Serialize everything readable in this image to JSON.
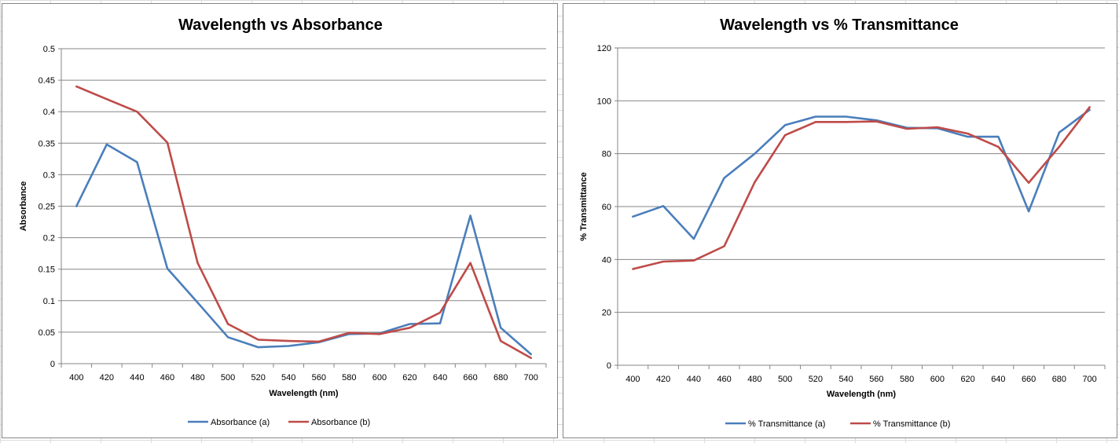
{
  "chart_data": [
    {
      "type": "line",
      "title": "Wavelength vs Absorbance",
      "xlabel": "Wavelength (nm)",
      "ylabel": "Absorbance",
      "categories": [
        "400",
        "420",
        "440",
        "460",
        "480",
        "500",
        "520",
        "540",
        "560",
        "580",
        "600",
        "620",
        "640",
        "660",
        "680",
        "700"
      ],
      "ylim": [
        0,
        0.5
      ],
      "yticks": [
        "0",
        "0.05",
        "0.1",
        "0.15",
        "0.2",
        "0.25",
        "0.3",
        "0.35",
        "0.4",
        "0.45",
        "0.5"
      ],
      "grid": true,
      "legend_position": "bottom",
      "series": [
        {
          "name": "Absorbance (a)",
          "color": "#4a7ebb",
          "values": [
            0.25,
            0.348,
            0.32,
            0.151,
            0.097,
            0.042,
            0.026,
            0.028,
            0.034,
            0.047,
            0.048,
            0.063,
            0.064,
            0.235,
            0.057,
            0.015
          ]
        },
        {
          "name": "Absorbance (b)",
          "color": "#be4b48",
          "values": [
            0.44,
            0.42,
            0.4,
            0.351,
            0.16,
            0.063,
            0.038,
            0.036,
            0.035,
            0.049,
            0.047,
            0.057,
            0.081,
            0.16,
            0.036,
            0.009
          ]
        }
      ]
    },
    {
      "type": "line",
      "title": "Wavelength vs % Transmittance",
      "xlabel": "Wavelength (nm)",
      "ylabel": "% Transmittance",
      "categories": [
        "400",
        "420",
        "440",
        "460",
        "480",
        "500",
        "520",
        "540",
        "560",
        "580",
        "600",
        "620",
        "640",
        "660",
        "680",
        "700"
      ],
      "ylim": [
        0,
        120
      ],
      "yticks": [
        "0",
        "20",
        "40",
        "60",
        "80",
        "100",
        "120"
      ],
      "grid": true,
      "legend_position": "bottom",
      "series": [
        {
          "name": "% Transmittance  (a)",
          "color": "#4a7ebb",
          "values": [
            56.2,
            60.2,
            47.8,
            70.8,
            80,
            90.8,
            94,
            94,
            92.6,
            89.8,
            89.6,
            86.4,
            86.4,
            58.2,
            88,
            96.6
          ]
        },
        {
          "name": "% Transmittance  (b)",
          "color": "#be4b48",
          "values": [
            36.4,
            39.2,
            39.6,
            45,
            69.2,
            87,
            92,
            92,
            92.2,
            89.4,
            90,
            87.6,
            82.6,
            69,
            82.6,
            97.6
          ]
        }
      ]
    }
  ]
}
